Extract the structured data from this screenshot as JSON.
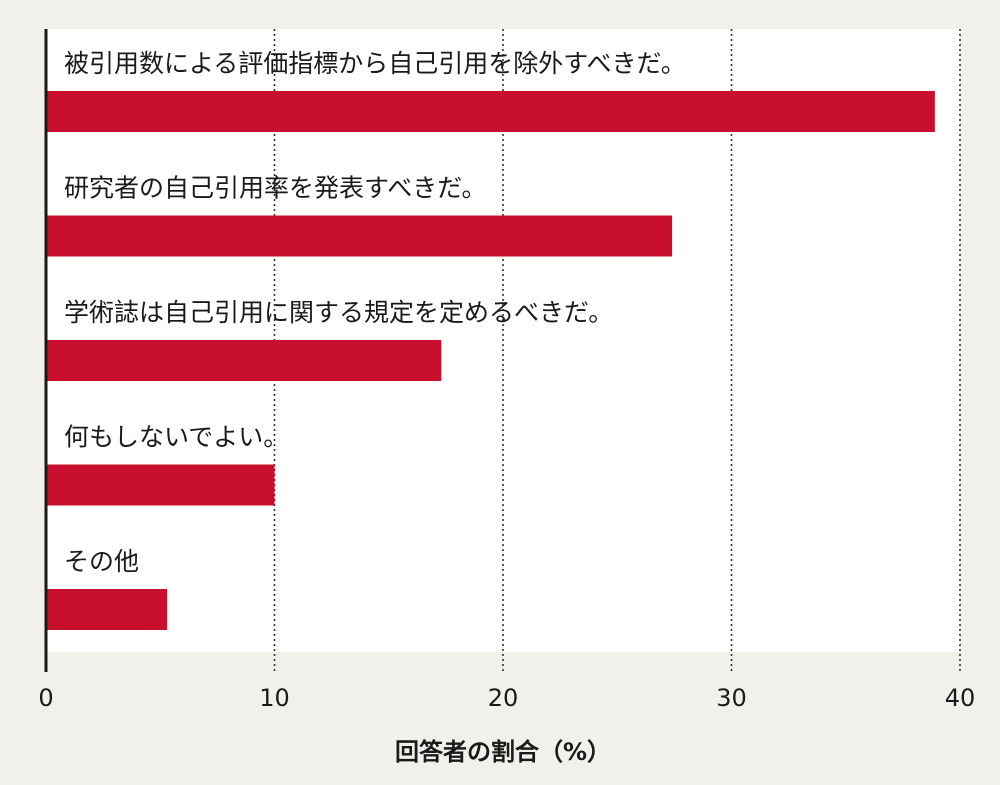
{
  "chart_data": {
    "type": "bar",
    "orientation": "horizontal",
    "categories": [
      "被引用数による評価指標から自己引用を除外すべきだ。",
      "研究者の自己引用率を発表すべきだ。",
      "学術誌は自己引用に関する規定を定めるべきだ。",
      "何もしないでよい。",
      "その他"
    ],
    "values": [
      38.9,
      27.4,
      17.3,
      10.0,
      5.3
    ],
    "xlabel": "回答者の割合（%）",
    "ylabel": "",
    "xlim": [
      0,
      40
    ],
    "xticks": [
      0,
      10,
      20,
      30,
      40
    ],
    "grid": "vertical-dotted",
    "bar_color": "#c8102e",
    "legend": "none"
  }
}
